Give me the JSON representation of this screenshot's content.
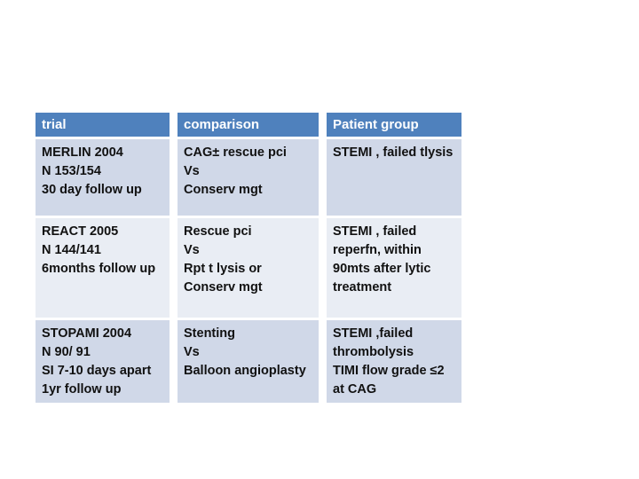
{
  "slide": {
    "background_color": "#ffffff"
  },
  "table": {
    "style": {
      "header_bg": "#4f81bd",
      "header_text": "#ffffff",
      "band_dark_bg": "#d0d8e8",
      "band_light_bg": "#e9edf4",
      "body_text": "#111111"
    },
    "columns": [
      {
        "label": "trial"
      },
      {
        "label": "comparison"
      },
      {
        "label": "Patient group"
      }
    ],
    "rows": [
      {
        "trial": "MERLIN 2004\nN 153/154\n30 day follow up",
        "comparison": "CAG± rescue pci\nVs\nConserv mgt",
        "patient_group": "STEMI , failed tlysis"
      },
      {
        "trial": "REACT 2005\nN 144/141\n6months follow up",
        "comparison": "Rescue pci\nVs\nRpt t lysis or\nConserv mgt",
        "patient_group": "STEMI , failed\nreperfn, within\n90mts after lytic\ntreatment"
      },
      {
        "trial": "STOPAMI 2004\nN 90/ 91\nSI 7-10 days apart\n1yr follow up",
        "comparison": "Stenting\nVs\nBalloon angioplasty",
        "patient_group": "STEMI ,failed\nthrombolysis\nTIMI flow grade ≤2\nat CAG"
      }
    ]
  }
}
